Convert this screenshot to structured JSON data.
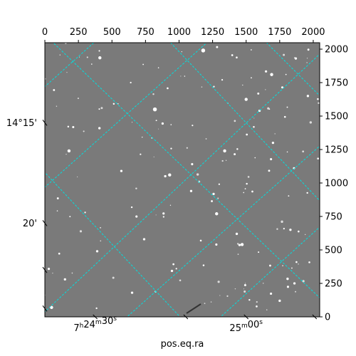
{
  "chart_data": {
    "type": "image",
    "description_colors": {
      "background": "#ffffff",
      "image_gray": "#7a7a7a",
      "grid": "#00e0e0",
      "frame": "#000000"
    },
    "top_axis": {
      "ticks": [
        "0",
        "250",
        "500",
        "750",
        "1000",
        "1250",
        "1500",
        "1750",
        "2000"
      ],
      "range": [
        0,
        2048
      ]
    },
    "right_axis": {
      "ticks": [
        "0",
        "250",
        "500",
        "750",
        "1000",
        "1250",
        "1500",
        "1750",
        "2000"
      ],
      "range": [
        0,
        2048
      ]
    },
    "left_axis": {
      "ticks": [
        {
          "pixel": 1450,
          "label": "14°15'"
        },
        {
          "pixel": 700,
          "label": "20'"
        }
      ]
    },
    "bottom_axis": {
      "ticks": [
        {
          "pixel": 375,
          "label_main": "7",
          "sup_h": "h",
          "mid": "24",
          "sup_m": "m",
          "end": "30",
          "sup_s": "s"
        },
        {
          "pixel": 1500,
          "label_main": "25",
          "sup_m": "m",
          "end": "00",
          "sup_s": "s"
        }
      ],
      "label": "pos.eq.ra"
    },
    "grid_on": true,
    "grid_lines": [
      [
        [
          -300,
          1450
        ],
        [
          700,
          2350
        ]
      ],
      [
        [
          -300,
          700
        ],
        [
          1600,
          2400
        ]
      ],
      [
        [
          -200,
          -150
        ],
        [
          2300,
          2200
        ]
      ],
      [
        [
          500,
          -100
        ],
        [
          2300,
          1500
        ]
      ],
      [
        [
          1200,
          -100
        ],
        [
          2300,
          900
        ]
      ],
      [
        [
          -300,
          1400
        ],
        [
          1100,
          -100
        ]
      ],
      [
        [
          -200,
          2300
        ],
        [
          2300,
          -100
        ]
      ],
      [
        [
          700,
          2300
        ],
        [
          2300,
          600
        ]
      ],
      [
        [
          1500,
          2200
        ],
        [
          2300,
          1400
        ]
      ]
    ],
    "stars": [
      [
        410,
        1935,
        4
      ],
      [
        1180,
        1990,
        5
      ],
      [
        1690,
        1810,
        4
      ],
      [
        1500,
        1625,
        4
      ],
      [
        820,
        1550,
        5
      ],
      [
        180,
        1240,
        4
      ],
      [
        570,
        1090,
        3
      ],
      [
        1340,
        1240,
        4
      ],
      [
        1700,
        1300,
        3
      ],
      [
        930,
        1060,
        4
      ],
      [
        1090,
        940,
        3
      ],
      [
        1280,
        770,
        4
      ],
      [
        1430,
        620,
        3
      ],
      [
        1830,
        650,
        3
      ],
      [
        390,
        490,
        3
      ],
      [
        1470,
        540,
        4
      ],
      [
        740,
        580,
        3
      ],
      [
        150,
        280,
        3
      ],
      [
        650,
        180,
        3
      ],
      [
        1860,
        250,
        3
      ],
      [
        1960,
        1650,
        3
      ],
      [
        1600,
        1540,
        3
      ],
      [
        1100,
        1430,
        2
      ],
      [
        300,
        780,
        2
      ],
      [
        980,
        360,
        2
      ],
      [
        50,
        70,
        4
      ],
      [
        1750,
        120,
        3
      ],
      [
        1260,
        1720,
        2
      ],
      [
        640,
        1750,
        2
      ],
      [
        1870,
        1930,
        3
      ]
    ],
    "faint_star_count": 160
  }
}
